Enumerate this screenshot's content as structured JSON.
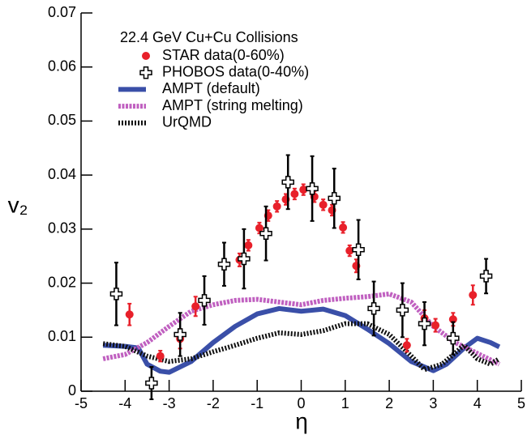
{
  "chart_data": {
    "type": "line",
    "legend_title": "22.4 GeV Cu+Cu Collisions",
    "x_label": "η",
    "y_label": "v₂",
    "xlim": [
      -5,
      5
    ],
    "ylim": [
      0,
      0.07
    ],
    "xticks": [
      -5,
      -4,
      -3,
      -2,
      -1,
      0,
      1,
      2,
      3,
      4,
      5
    ],
    "yticks": [
      0,
      0.01,
      0.02,
      0.03,
      0.04,
      0.05,
      0.06,
      0.07
    ],
    "legend": "upper left",
    "series": [
      {
        "name": "STAR data(0-60%)",
        "type": "scatter",
        "marker": "circle",
        "color": "#e8202a",
        "x": [
          -3.9,
          -3.2,
          -2.75,
          -2.4,
          -1.4,
          -1.2,
          -0.95,
          -0.75,
          -0.55,
          -0.35,
          -0.15,
          0.05,
          0.3,
          0.5,
          0.7,
          0.95,
          1.1,
          1.25,
          2.4,
          2.8,
          3.05,
          3.45,
          3.9
        ],
        "values": [
          0.0142,
          0.0065,
          0.0097,
          0.0157,
          0.0243,
          0.027,
          0.0302,
          0.0325,
          0.0342,
          0.0355,
          0.0365,
          0.0373,
          0.036,
          0.0345,
          0.0335,
          0.0303,
          0.026,
          0.0232,
          0.0085,
          0.0135,
          0.0122,
          0.0133,
          0.0178
        ],
        "errors": [
          0.002,
          0.001,
          0.0018,
          0.0018,
          0.0012,
          0.001,
          0.001,
          0.001,
          0.001,
          0.001,
          0.001,
          0.001,
          0.001,
          0.001,
          0.001,
          0.001,
          0.001,
          0.0012,
          0.0012,
          0.0015,
          0.0012,
          0.0012,
          0.0018
        ]
      },
      {
        "name": "PHOBOS data(0-40%)",
        "type": "scatter",
        "marker": "cross",
        "color": "#000000",
        "x": [
          -4.2,
          -3.4,
          -2.75,
          -2.2,
          -1.75,
          -1.3,
          -0.8,
          -0.3,
          0.25,
          0.75,
          1.3,
          1.65,
          2.3,
          2.8,
          3.45,
          4.2
        ],
        "values": [
          0.018,
          0.0015,
          0.0105,
          0.0168,
          0.0235,
          0.0245,
          0.0292,
          0.0387,
          0.0375,
          0.0357,
          0.0262,
          0.0153,
          0.015,
          0.0125,
          0.0098,
          0.0213
        ],
        "errors": [
          0.0058,
          0.003,
          0.004,
          0.0045,
          0.004,
          0.0055,
          0.005,
          0.005,
          0.006,
          0.0055,
          0.0055,
          0.005,
          0.005,
          0.004,
          0.003,
          0.0032
        ]
      },
      {
        "name": "AMPT (default)",
        "type": "line",
        "style": "solid",
        "color": "#3a4fa8",
        "x": [
          -4.5,
          -4.0,
          -3.7,
          -3.5,
          -3.2,
          -3.0,
          -2.5,
          -2.0,
          -1.5,
          -1.0,
          -0.5,
          0,
          0.5,
          1.0,
          1.5,
          2.0,
          2.5,
          3.0,
          3.3,
          3.7,
          4.0,
          4.3,
          4.5
        ],
        "values": [
          0.0085,
          0.0083,
          0.008,
          0.005,
          0.0037,
          0.0035,
          0.0055,
          0.009,
          0.012,
          0.0143,
          0.0153,
          0.0148,
          0.0152,
          0.014,
          0.0115,
          0.0088,
          0.0055,
          0.0038,
          0.005,
          0.008,
          0.0098,
          0.009,
          0.0082
        ]
      },
      {
        "name": "AMPT (string melting)",
        "type": "line",
        "style": "dashed",
        "color": "#c060c0",
        "x": [
          -4.5,
          -4.0,
          -3.5,
          -3.0,
          -2.5,
          -2.0,
          -1.5,
          -1.0,
          -0.5,
          0,
          0.5,
          1.0,
          1.5,
          2.0,
          2.5,
          3.0,
          3.5,
          4.0,
          4.5
        ],
        "values": [
          0.006,
          0.0068,
          0.009,
          0.012,
          0.0148,
          0.016,
          0.0168,
          0.017,
          0.0165,
          0.016,
          0.0168,
          0.0172,
          0.0175,
          0.018,
          0.0165,
          0.012,
          0.009,
          0.007,
          0.005
        ]
      },
      {
        "name": "UrQMD",
        "type": "line",
        "style": "dotted",
        "color": "#111111",
        "x": [
          -4.5,
          -4.0,
          -3.5,
          -3.0,
          -2.5,
          -2.0,
          -1.5,
          -1.0,
          -0.5,
          0,
          0.5,
          1.0,
          1.5,
          2.0,
          2.5,
          2.8,
          3.2,
          3.7,
          4.0,
          4.3,
          4.5
        ],
        "values": [
          0.0088,
          0.0083,
          0.0065,
          0.0055,
          0.006,
          0.0073,
          0.0085,
          0.0098,
          0.0108,
          0.0105,
          0.0112,
          0.0125,
          0.0125,
          0.0105,
          0.0065,
          0.004,
          0.005,
          0.0085,
          0.006,
          0.005,
          0.006
        ]
      }
    ]
  }
}
